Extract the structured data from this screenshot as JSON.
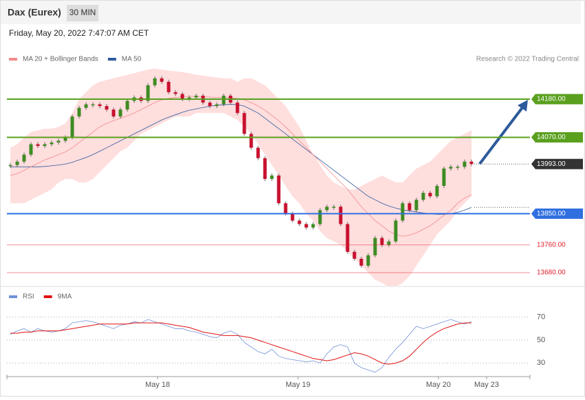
{
  "header": {
    "title": "Dax (Eurex)",
    "timeframe": "30 MIN",
    "datetime": "Friday, May 20, 2022 7:47:07 AM CET"
  },
  "chart_data": [
    {
      "type": "candlestick",
      "credit": "Research © 2022 Trading Central",
      "xlim": [
        -0.5,
        75.5
      ],
      "xticks": [
        {
          "value": 21.4,
          "label": "May 18"
        },
        {
          "value": 41.8,
          "label": "May 19"
        },
        {
          "value": 62.2,
          "label": "May 20"
        },
        {
          "value": 69.2,
          "label": "May 23"
        }
      ],
      "ylim": [
        13640,
        14280
      ],
      "candles": {
        "up_color": "#3d8c22",
        "down_color": "#c8102e",
        "values": [
          13990,
          14000,
          14020,
          14050,
          14045,
          14050,
          14055,
          14060,
          14070,
          14130,
          14155,
          14165,
          14165,
          14160,
          14150,
          14130,
          14150,
          14175,
          14185,
          14175,
          14220,
          14240,
          14230,
          14200,
          14195,
          14180,
          14185,
          14190,
          14170,
          14160,
          14165,
          14190,
          14170,
          14140,
          14080,
          14040,
          14010,
          13950,
          13960,
          13880,
          13850,
          13830,
          13820,
          13810,
          13820,
          13860,
          13870,
          13870,
          13820,
          13740,
          13720,
          13700,
          13730,
          13780,
          13760,
          13770,
          13830,
          13880,
          13860,
          13890,
          13910,
          13900,
          13930,
          13980,
          13985,
          13985,
          14000,
          13993
        ]
      },
      "series": [
        {
          "name": "MA 20 + Bollinger Bands",
          "color": "#f28a8a",
          "band_color": "#ffdede",
          "values": [
            13960,
            13965,
            13975,
            13985,
            13995,
            14005,
            14012,
            14020,
            14028,
            14040,
            14055,
            14070,
            14085,
            14100,
            14110,
            14118,
            14125,
            14132,
            14140,
            14150,
            14160,
            14170,
            14178,
            14182,
            14185,
            14187,
            14188,
            14188,
            14187,
            14186,
            14185,
            14185,
            14184,
            14182,
            14178,
            14170,
            14160,
            14148,
            14133,
            14118,
            14100,
            14080,
            14060,
            14040,
            14020,
            14000,
            13980,
            13960,
            13940,
            13920,
            13895,
            13870,
            13850,
            13830,
            13815,
            13800,
            13790,
            13785,
            13788,
            13795,
            13805,
            13815,
            13830,
            13845,
            13860,
            13880,
            13895,
            13905
          ],
          "upper": [
            14040,
            14050,
            14070,
            14085,
            14090,
            14095,
            14095,
            14100,
            14110,
            14140,
            14180,
            14200,
            14220,
            14230,
            14235,
            14240,
            14245,
            14250,
            14255,
            14260,
            14265,
            14268,
            14265,
            14262,
            14260,
            14258,
            14255,
            14250,
            14248,
            14245,
            14242,
            14240,
            14240,
            14230,
            14240,
            14240,
            14230,
            14220,
            14200,
            14180,
            14160,
            14130,
            14100,
            14060,
            14020,
            13990,
            13960,
            13940,
            13930,
            13920,
            13920,
            13930,
            13940,
            13950,
            13960,
            13950,
            13940,
            13940,
            13960,
            13980,
            13990,
            14000,
            14020,
            14040,
            14060,
            14070,
            14080,
            14090
          ],
          "lower": [
            13880,
            13880,
            13880,
            13890,
            13900,
            13910,
            13920,
            13940,
            13950,
            13950,
            13940,
            13940,
            13950,
            13970,
            13990,
            14010,
            14030,
            14040,
            14060,
            14080,
            14090,
            14100,
            14110,
            14120,
            14130,
            14130,
            14130,
            14140,
            14140,
            14140,
            14140,
            14140,
            14130,
            14120,
            14100,
            14080,
            14050,
            14020,
            13990,
            13960,
            13930,
            13900,
            13880,
            13850,
            13830,
            13800,
            13780,
            13770,
            13760,
            13740,
            13720,
            13700,
            13680,
            13660,
            13650,
            13640,
            13640,
            13650,
            13670,
            13700,
            13730,
            13760,
            13790,
            13810,
            13830,
            13860,
            13880,
            13900
          ]
        },
        {
          "name": "MA 50",
          "color": "#2d5a9b",
          "values": [
            13985,
            13985,
            13985,
            13985,
            13985,
            13986,
            13988,
            13990,
            13993,
            13998,
            14005,
            14012,
            14020,
            14030,
            14040,
            14050,
            14060,
            14070,
            14080,
            14090,
            14100,
            14110,
            14120,
            14128,
            14135,
            14142,
            14148,
            14152,
            14156,
            14160,
            14162,
            14164,
            14165,
            14164,
            14160,
            14150,
            14140,
            14125,
            14110,
            14095,
            14080,
            14065,
            14050,
            14035,
            14020,
            14005,
            13990,
            13975,
            13960,
            13945,
            13930,
            13915,
            13900,
            13890,
            13880,
            13872,
            13866,
            13861,
            13858,
            13855,
            13852,
            13850,
            13848,
            13848,
            13850,
            13854,
            13860,
            13868
          ]
        }
      ],
      "levels": [
        {
          "value": 14180,
          "label": "14180.00",
          "kind": "resistance",
          "color": "#5aa01e"
        },
        {
          "value": 14070,
          "label": "14070.00",
          "kind": "resistance",
          "color": "#5aa01e"
        },
        {
          "value": 13993,
          "label": "13993.00",
          "kind": "last",
          "color": "#333333"
        },
        {
          "value": 13850,
          "label": "13850.00",
          "kind": "pivot",
          "color": "#2f6fe0"
        },
        {
          "value": 13760,
          "label": "13760.00",
          "kind": "support",
          "color": "#e0202a"
        },
        {
          "value": 13680,
          "label": "13680.00",
          "kind": "support",
          "color": "#e0202a"
        }
      ]
    },
    {
      "type": "line",
      "ylim": [
        20,
        80
      ],
      "yticks": [
        30,
        50,
        70
      ],
      "series": [
        {
          "name": "RSI",
          "color": "#6f8fd8",
          "values": [
            55,
            58,
            60,
            57,
            60,
            58,
            57,
            58,
            60,
            65,
            66,
            67,
            66,
            64,
            62,
            60,
            63,
            64,
            66,
            65,
            68,
            66,
            64,
            62,
            60,
            60,
            58,
            57,
            55,
            53,
            52,
            56,
            58,
            55,
            48,
            44,
            40,
            38,
            42,
            36,
            34,
            33,
            32,
            31,
            32,
            30,
            38,
            44,
            46,
            44,
            30,
            26,
            24,
            22,
            26,
            35,
            42,
            48,
            55,
            62,
            60,
            62,
            64,
            66,
            68,
            66,
            64,
            66
          ]
        },
        {
          "name": "9MA",
          "color": "#e01010",
          "values": [
            56,
            56,
            57,
            57,
            58,
            58,
            58,
            58,
            59,
            60,
            61,
            62,
            63,
            64,
            64,
            64,
            64,
            64,
            65,
            65,
            65,
            65,
            65,
            64,
            63,
            62,
            61,
            59,
            57,
            56,
            55,
            54,
            54,
            54,
            53,
            52,
            50,
            48,
            46,
            44,
            42,
            40,
            38,
            36,
            34,
            33,
            32,
            33,
            35,
            37,
            39,
            38,
            36,
            33,
            30,
            29,
            30,
            32,
            36,
            42,
            48,
            53,
            57,
            60,
            62,
            64,
            65,
            65
          ]
        }
      ]
    }
  ]
}
